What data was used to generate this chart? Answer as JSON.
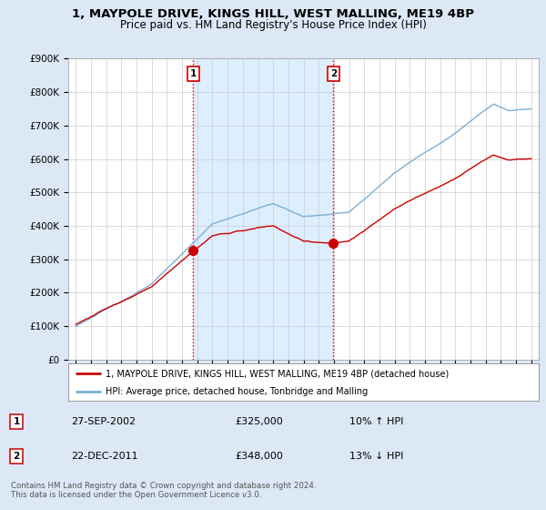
{
  "title": "1, MAYPOLE DRIVE, KINGS HILL, WEST MALLING, ME19 4BP",
  "subtitle": "Price paid vs. HM Land Registry's House Price Index (HPI)",
  "legend_line1": "1, MAYPOLE DRIVE, KINGS HILL, WEST MALLING, ME19 4BP (detached house)",
  "legend_line2": "HPI: Average price, detached house, Tonbridge and Malling",
  "transaction1_label": "1",
  "transaction1_date": "27-SEP-2002",
  "transaction1_price": "£325,000",
  "transaction1_hpi": "10% ↑ HPI",
  "transaction2_label": "2",
  "transaction2_date": "22-DEC-2011",
  "transaction2_price": "£348,000",
  "transaction2_hpi": "13% ↓ HPI",
  "footer": "Contains HM Land Registry data © Crown copyright and database right 2024.\nThis data is licensed under the Open Government Licence v3.0.",
  "hpi_color": "#7bafd4",
  "price_color": "#cc0000",
  "marker_color": "#cc0000",
  "vline_color": "#cc0000",
  "bg_color": "#dce8f5",
  "plot_bg_color": "#ffffff",
  "shade_color": "#ddeeff",
  "ylim": [
    0,
    900000
  ],
  "yticks": [
    0,
    100000,
    200000,
    300000,
    400000,
    500000,
    600000,
    700000,
    800000,
    900000
  ],
  "transaction1_x": 2002.74,
  "transaction1_y": 325000,
  "transaction2_x": 2011.97,
  "transaction2_y": 348000,
  "xmin": 1994.5,
  "xmax": 2025.5
}
